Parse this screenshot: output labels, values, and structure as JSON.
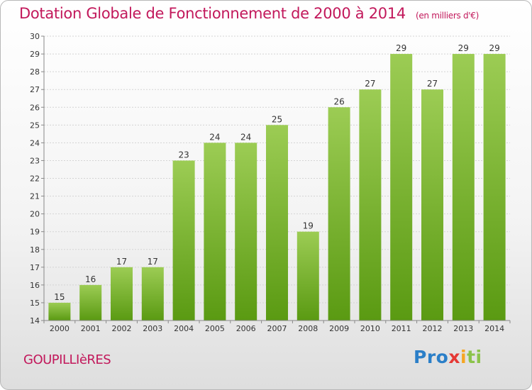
{
  "chart_data": {
    "type": "bar",
    "title": "Dotation Globale de Fonctionnement de 2000 à 2014",
    "subtitle": "(en milliers d'€)",
    "xlabel": "",
    "ylabel": "",
    "categories": [
      "2000",
      "2001",
      "2002",
      "2003",
      "2004",
      "2005",
      "2006",
      "2007",
      "2008",
      "2009",
      "2010",
      "2011",
      "2012",
      "2013",
      "2014"
    ],
    "values": [
      15,
      16,
      17,
      17,
      23,
      24,
      24,
      25,
      19,
      26,
      27,
      29,
      27,
      29,
      29
    ],
    "ylim": [
      14,
      30
    ],
    "yticks": [
      14,
      15,
      16,
      17,
      18,
      19,
      20,
      21,
      22,
      23,
      24,
      25,
      26,
      27,
      28,
      29,
      30
    ],
    "grid": true,
    "data_labels": true,
    "bar_color_top": "#9ccc54",
    "bar_color_bottom": "#5a9a12"
  },
  "footer": {
    "commune": "GOUPILLIèRES",
    "logo_letters": [
      "P",
      "r",
      "o",
      "x",
      "i",
      "t",
      "i"
    ],
    "logo_colors": [
      "#2b7fc8",
      "#2b7fc8",
      "#2b7fc8",
      "#e53935",
      "#f5a623",
      "#8bc34a",
      "#8bc34a"
    ]
  }
}
